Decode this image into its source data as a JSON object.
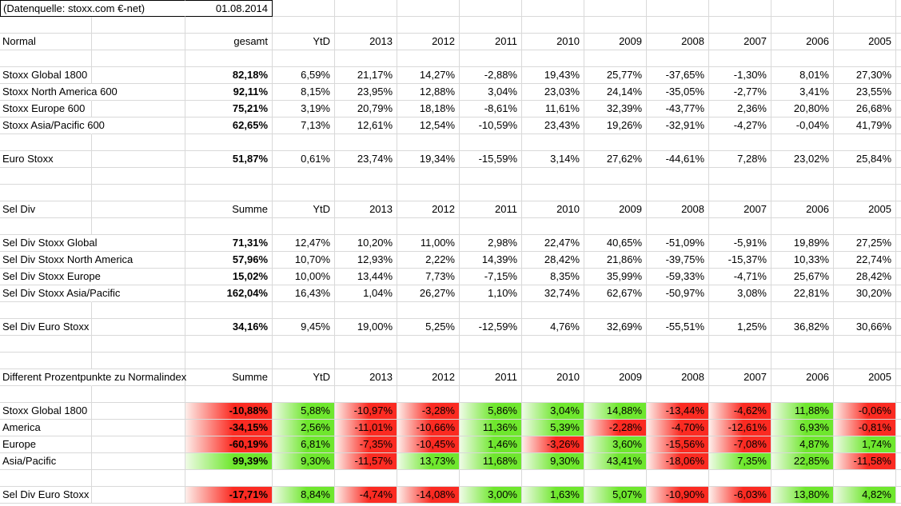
{
  "meta": {
    "source_label": "(Datenquelle: stoxx.com €-net)",
    "date": "01.08.2014"
  },
  "columns": [
    "YtD",
    "2013",
    "2012",
    "2011",
    "2010",
    "2009",
    "2008",
    "2007",
    "2006",
    "2005"
  ],
  "colors": {
    "positive": "#6fe72e",
    "positive_pale": "#effbe6",
    "negative": "#fb2b22",
    "negative_pale": "#fdeeea",
    "gridline": "#d9d9d9",
    "box_border": "#000000"
  },
  "sections": [
    {
      "title": "Normal",
      "value_header": "gesamt",
      "colored": false,
      "rows": [
        {
          "label": "Stoxx Global 1800",
          "values": [
            "82,18%",
            "6,59%",
            "21,17%",
            "14,27%",
            "-2,88%",
            "19,43%",
            "25,77%",
            "-37,65%",
            "-1,30%",
            "8,01%",
            "27,30%"
          ]
        },
        {
          "label": "Stoxx North America 600",
          "values": [
            "92,11%",
            "8,15%",
            "23,95%",
            "12,88%",
            "3,04%",
            "23,03%",
            "24,14%",
            "-35,05%",
            "-2,77%",
            "3,41%",
            "23,55%"
          ]
        },
        {
          "label": "Stoxx Europe 600",
          "values": [
            "75,21%",
            "3,19%",
            "20,79%",
            "18,18%",
            "-8,61%",
            "11,61%",
            "32,39%",
            "-43,77%",
            "2,36%",
            "20,80%",
            "26,68%"
          ]
        },
        {
          "label": "Stoxx Asia/Pacific 600",
          "values": [
            "62,65%",
            "7,13%",
            "12,61%",
            "12,54%",
            "-10,59%",
            "23,43%",
            "19,26%",
            "-32,91%",
            "-4,27%",
            "-0,04%",
            "41,79%"
          ]
        },
        {
          "label": "Euro Stoxx",
          "values": [
            "51,87%",
            "0,61%",
            "23,74%",
            "19,34%",
            "-15,59%",
            "3,14%",
            "27,62%",
            "-44,61%",
            "7,28%",
            "23,02%",
            "25,84%"
          ]
        }
      ]
    },
    {
      "title": "Sel Div",
      "value_header": "Summe",
      "colored": false,
      "rows": [
        {
          "label": "Sel Div Stoxx Global",
          "values": [
            "71,31%",
            "12,47%",
            "10,20%",
            "11,00%",
            "2,98%",
            "22,47%",
            "40,65%",
            "-51,09%",
            "-5,91%",
            "19,89%",
            "27,25%"
          ]
        },
        {
          "label": "Sel Div Stoxx North America",
          "values": [
            "57,96%",
            "10,70%",
            "12,93%",
            "2,22%",
            "14,39%",
            "28,42%",
            "21,86%",
            "-39,75%",
            "-15,37%",
            "10,33%",
            "22,74%"
          ]
        },
        {
          "label": "Sel Div Stoxx Europe",
          "values": [
            "15,02%",
            "10,00%",
            "13,44%",
            "7,73%",
            "-7,15%",
            "8,35%",
            "35,99%",
            "-59,33%",
            "-4,71%",
            "25,67%",
            "28,42%"
          ]
        },
        {
          "label": "Sel Div Stoxx Asia/Pacific",
          "values": [
            "162,04%",
            "16,43%",
            "1,04%",
            "26,27%",
            "1,10%",
            "32,74%",
            "62,67%",
            "-50,97%",
            "3,08%",
            "22,81%",
            "30,20%"
          ]
        },
        {
          "label": "Sel Div Euro Stoxx",
          "values": [
            "34,16%",
            "9,45%",
            "19,00%",
            "5,25%",
            "-12,59%",
            "4,76%",
            "32,69%",
            "-55,51%",
            "1,25%",
            "36,82%",
            "30,66%"
          ]
        }
      ]
    },
    {
      "title": "Different Prozentpunkte zu Normalindex",
      "value_header": "Summe",
      "colored": true,
      "rows": [
        {
          "label": "Stoxx Global 1800",
          "values": [
            "-10,88%",
            "5,88%",
            "-10,97%",
            "-3,28%",
            "5,86%",
            "3,04%",
            "14,88%",
            "-13,44%",
            "-4,62%",
            "11,88%",
            "-0,06%"
          ]
        },
        {
          "label": "America",
          "values": [
            "-34,15%",
            "2,56%",
            "-11,01%",
            "-10,66%",
            "11,36%",
            "5,39%",
            "-2,28%",
            "-4,70%",
            "-12,61%",
            "6,93%",
            "-0,81%"
          ]
        },
        {
          "label": "Europe",
          "values": [
            "-60,19%",
            "6,81%",
            "-7,35%",
            "-10,45%",
            "1,46%",
            "-3,26%",
            "3,60%",
            "-15,56%",
            "-7,08%",
            "4,87%",
            "1,74%"
          ]
        },
        {
          "label": "Asia/Pacific",
          "values": [
            "99,39%",
            "9,30%",
            "-11,57%",
            "13,73%",
            "11,68%",
            "9,30%",
            "43,41%",
            "-18,06%",
            "7,35%",
            "22,85%",
            "-11,58%"
          ]
        },
        {
          "label": "Sel Div Euro Stoxx",
          "values": [
            "-17,71%",
            "8,84%",
            "-4,74%",
            "-14,08%",
            "3,00%",
            "1,63%",
            "5,07%",
            "-10,90%",
            "-6,03%",
            "13,80%",
            "4,82%"
          ]
        }
      ]
    }
  ]
}
